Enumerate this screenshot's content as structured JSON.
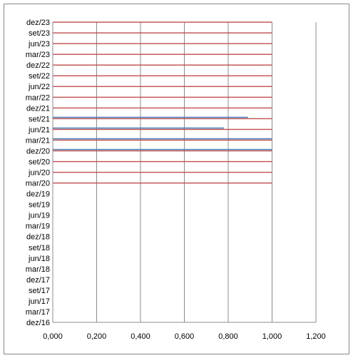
{
  "chart_data": {
    "type": "bar",
    "orientation": "horizontal",
    "title": "",
    "xlabel": "",
    "ylabel": "",
    "xlim": [
      0,
      1.2
    ],
    "x_ticks": [
      "0,000",
      "0,200",
      "0,400",
      "0,600",
      "0,800",
      "1,000",
      "1,200"
    ],
    "x_tick_values": [
      0,
      0.2,
      0.4,
      0.6,
      0.8,
      1.0,
      1.2
    ],
    "categories": [
      "dez/16",
      "mar/17",
      "jun/17",
      "set/17",
      "dez/17",
      "mar/18",
      "jun/18",
      "set/18",
      "dez/18",
      "mar/19",
      "jun/19",
      "set/19",
      "dez/19",
      "mar/20",
      "jun/20",
      "set/20",
      "dez/20",
      "mar/21",
      "jun/21",
      "set/21",
      "dez/21",
      "mar/22",
      "jun/22",
      "set/22",
      "dez/22",
      "mar/23",
      "jun/23",
      "set/23",
      "dez/23"
    ],
    "series": [
      {
        "color": "#c0504d",
        "values": [
          null,
          null,
          null,
          null,
          null,
          null,
          null,
          null,
          null,
          null,
          null,
          null,
          null,
          1.0,
          1.0,
          1.0,
          1.0,
          1.0,
          1.0,
          1.0,
          1.0,
          1.0,
          1.0,
          1.0,
          1.0,
          1.0,
          1.0,
          1.0,
          1.0
        ]
      },
      {
        "color": "#4f81bd",
        "values": [
          null,
          null,
          null,
          null,
          null,
          null,
          null,
          null,
          null,
          null,
          null,
          null,
          null,
          null,
          null,
          null,
          1.0,
          1.0,
          0.78,
          0.89,
          null,
          null,
          null,
          null,
          null,
          null,
          null,
          null,
          null
        ]
      }
    ],
    "grid": true,
    "legend": "none"
  }
}
